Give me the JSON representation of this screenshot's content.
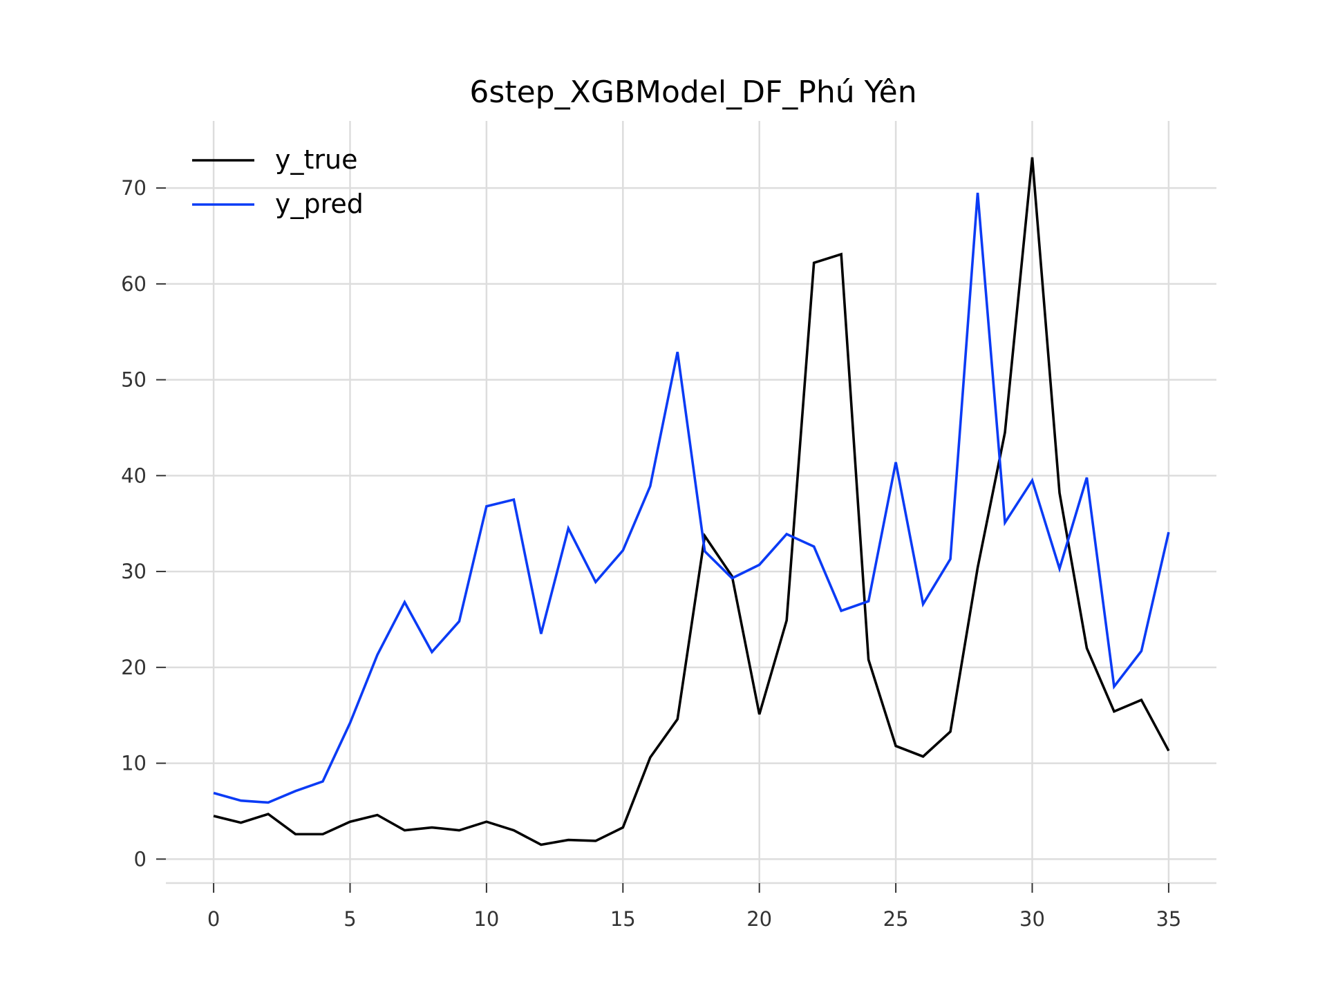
{
  "chart_data": {
    "type": "line",
    "title": "6step_XGBModel_DF_Phú Yên",
    "xlabel": "",
    "ylabel": "",
    "xlim": [
      -1.75,
      36.75
    ],
    "ylim": [
      -2.5,
      77
    ],
    "x_ticks": [
      0,
      5,
      10,
      15,
      20,
      25,
      30,
      35
    ],
    "y_ticks": [
      0,
      10,
      20,
      30,
      40,
      50,
      60,
      70
    ],
    "grid": true,
    "legend_position": "top-left",
    "x": [
      0,
      1,
      2,
      3,
      4,
      5,
      6,
      7,
      8,
      9,
      10,
      11,
      12,
      13,
      14,
      15,
      16,
      17,
      18,
      19,
      20,
      21,
      22,
      23,
      24,
      25,
      26,
      27,
      28,
      29,
      30,
      31,
      32,
      33,
      34,
      35
    ],
    "series": [
      {
        "name": "y_true",
        "color": "#000000",
        "values": [
          4.5,
          3.8,
          4.7,
          2.6,
          2.6,
          3.9,
          4.6,
          3.0,
          3.3,
          3.0,
          3.9,
          3.0,
          1.5,
          2.0,
          1.9,
          3.3,
          10.6,
          14.6,
          33.7,
          29.5,
          15.1,
          24.9,
          62.2,
          63.1,
          20.8,
          11.8,
          10.7,
          13.3,
          30.4,
          44.5,
          73.2,
          38.2,
          22.0,
          15.4,
          16.6,
          11.3
        ]
      },
      {
        "name": "y_pred",
        "color": "#0b3bf5",
        "values": [
          6.9,
          6.1,
          5.9,
          7.1,
          8.1,
          14.2,
          21.3,
          26.8,
          21.6,
          24.8,
          36.8,
          37.5,
          23.5,
          34.5,
          28.9,
          32.2,
          38.9,
          52.9,
          32.1,
          29.3,
          30.7,
          33.9,
          32.6,
          25.9,
          26.9,
          41.4,
          26.6,
          31.3,
          69.5,
          35.1,
          39.5,
          30.3,
          39.8,
          18.0,
          21.7,
          34.1
        ]
      }
    ]
  }
}
